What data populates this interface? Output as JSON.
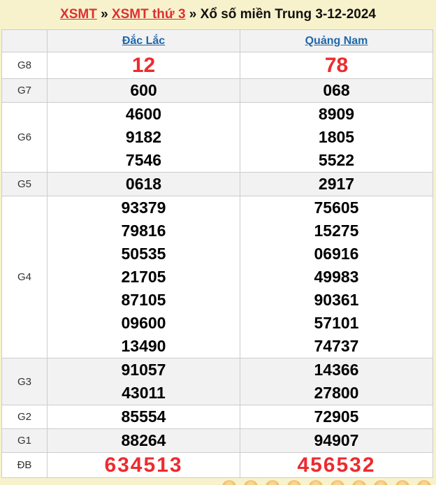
{
  "breadcrumb": {
    "link_xsmt": "XSMT",
    "link_xsmt_thu3": "XSMT thứ 3",
    "separator": "»",
    "page_title": "Xổ số miền Trung 3-12-2024"
  },
  "table": {
    "columns": [
      "Đắc Lắc",
      "Quảng Nam"
    ],
    "rows": [
      {
        "label": "G8",
        "style": "red-large row-g8",
        "values": [
          [
            "12"
          ],
          [
            "78"
          ]
        ]
      },
      {
        "label": "G7",
        "style": "",
        "values": [
          [
            "600"
          ],
          [
            "068"
          ]
        ]
      },
      {
        "label": "G6",
        "style": "",
        "values": [
          [
            "4600",
            "9182",
            "7546"
          ],
          [
            "8909",
            "1805",
            "5522"
          ]
        ]
      },
      {
        "label": "G5",
        "style": "",
        "values": [
          [
            "0618"
          ],
          [
            "2917"
          ]
        ]
      },
      {
        "label": "G4",
        "style": "",
        "values": [
          [
            "93379",
            "79816",
            "50535",
            "21705",
            "87105",
            "09600",
            "13490"
          ],
          [
            "75605",
            "15275",
            "06916",
            "49983",
            "90361",
            "57101",
            "74737"
          ]
        ]
      },
      {
        "label": "G3",
        "style": "",
        "values": [
          [
            "91057",
            "43011"
          ],
          [
            "14366",
            "27800"
          ]
        ]
      },
      {
        "label": "G2",
        "style": "",
        "values": [
          [
            "85554"
          ],
          [
            "72905"
          ]
        ]
      },
      {
        "label": "G1",
        "style": "",
        "values": [
          [
            "88264"
          ],
          [
            "94907"
          ]
        ]
      },
      {
        "label": "ĐB",
        "style": "red-large row-db",
        "values": [
          [
            "634513"
          ],
          [
            "456532"
          ]
        ]
      }
    ]
  },
  "colors": {
    "page_background": "#f8f2cc",
    "row_shade": "#f2f2f2",
    "border": "#cccccc",
    "red_link": "#dc3032",
    "red_number": "#ed2b2f",
    "blue_link": "#1f67aa",
    "ball": "#e5a83e"
  },
  "decor": {
    "ball_count": 11
  }
}
